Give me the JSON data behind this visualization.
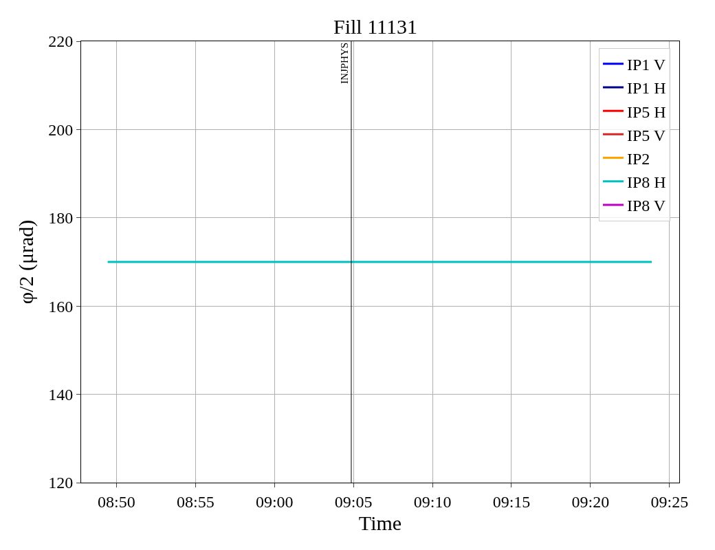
{
  "chart_data": {
    "type": "line",
    "title": "Fill 11131",
    "xlabel": "Time",
    "ylabel": "φ/2 (μrad)",
    "x": [
      8.824,
      9.398
    ],
    "series": [
      {
        "name": "IP1 V",
        "color": "#0000ff",
        "values": [
          null,
          null
        ]
      },
      {
        "name": "IP1 H",
        "color": "#00008b",
        "values": [
          null,
          null
        ]
      },
      {
        "name": "IP5 H",
        "color": "#ff0000",
        "values": [
          null,
          null
        ]
      },
      {
        "name": "IP5 V",
        "color": "#d62728",
        "values": [
          null,
          null
        ]
      },
      {
        "name": "IP2",
        "color": "#ffa500",
        "values": [
          null,
          null
        ]
      },
      {
        "name": "IP8 H",
        "color": "#00bfbf",
        "values": [
          170,
          170
        ]
      },
      {
        "name": "IP8 V",
        "color": "#bf00bf",
        "values": [
          null,
          null
        ]
      }
    ],
    "xlim": [
      8.796,
      9.427
    ],
    "xticks": [
      {
        "value": 8.8333,
        "label": "08:50"
      },
      {
        "value": 8.9167,
        "label": "08:55"
      },
      {
        "value": 9.0,
        "label": "09:00"
      },
      {
        "value": 9.0833,
        "label": "09:05"
      },
      {
        "value": 9.1667,
        "label": "09:10"
      },
      {
        "value": 9.25,
        "label": "09:15"
      },
      {
        "value": 9.3333,
        "label": "09:20"
      },
      {
        "value": 9.4167,
        "label": "09:25"
      }
    ],
    "ylim": [
      120,
      220
    ],
    "yticks": [
      120,
      140,
      160,
      180,
      200,
      220
    ],
    "ref_lines": [
      {
        "axis": "x",
        "value": 9.081,
        "label": "INJPHYS",
        "color": "#000000"
      }
    ],
    "grid": true,
    "legend": "top right"
  }
}
